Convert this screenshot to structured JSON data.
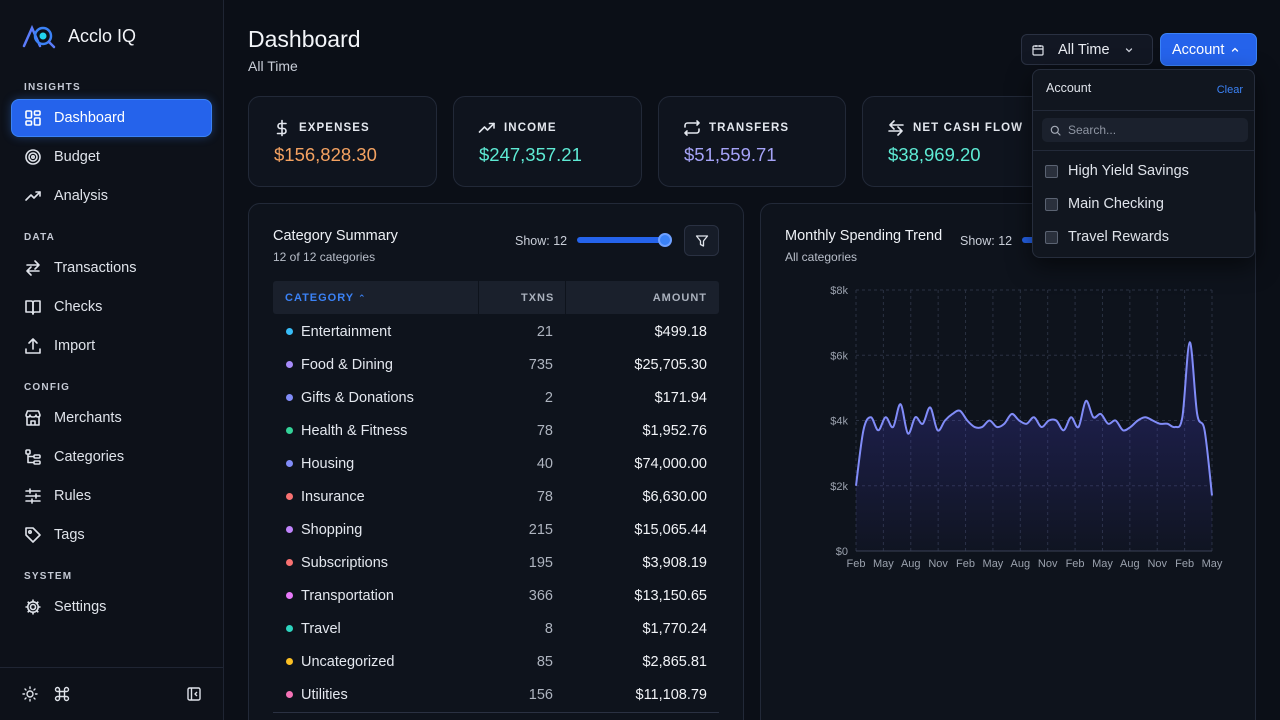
{
  "app": {
    "name": "Acclo IQ"
  },
  "sidebar": {
    "sections": [
      "INSIGHTS",
      "DATA",
      "CONFIG",
      "SYSTEM"
    ],
    "items": [
      {
        "label": "Dashboard",
        "icon": "dashboard-grid-icon",
        "active": true
      },
      {
        "label": "Budget",
        "icon": "target-icon"
      },
      {
        "label": "Analysis",
        "icon": "trend-icon"
      },
      {
        "label": "Transactions",
        "icon": "arrows-swap-icon"
      },
      {
        "label": "Checks",
        "icon": "book-icon"
      },
      {
        "label": "Import",
        "icon": "upload-icon"
      },
      {
        "label": "Merchants",
        "icon": "store-icon"
      },
      {
        "label": "Categories",
        "icon": "tree-icon"
      },
      {
        "label": "Rules",
        "icon": "sliders-icon"
      },
      {
        "label": "Tags",
        "icon": "tag-icon"
      },
      {
        "label": "Settings",
        "icon": "gear-icon"
      }
    ]
  },
  "header": {
    "title": "Dashboard",
    "subtitle": "All Time",
    "time_filter": "All Time",
    "account_button": "Account"
  },
  "stats": [
    {
      "label": "EXPENSES",
      "value": "$156,828.30",
      "color": "#f4a261",
      "icon": "dollar-icon"
    },
    {
      "label": "INCOME",
      "value": "$247,357.21",
      "color": "#5eead4",
      "icon": "trend-up-icon"
    },
    {
      "label": "TRANSFERS",
      "value": "$51,559.71",
      "color": "#a5a3f7",
      "icon": "transfer-icon"
    },
    {
      "label": "NET CASH FLOW",
      "value": "$38,969.20",
      "color": "#5eead4",
      "icon": "swap-icon"
    }
  ],
  "category_summary": {
    "title": "Category Summary",
    "subtitle": "12 of 12 categories",
    "show_label": "Show: 12",
    "columns": [
      "CATEGORY",
      "TXNS",
      "AMOUNT"
    ],
    "rows": [
      {
        "name": "Entertainment",
        "txns": "21",
        "amount": "$499.18",
        "color": "#38bdf8"
      },
      {
        "name": "Food & Dining",
        "txns": "735",
        "amount": "$25,705.30",
        "color": "#a78bfa"
      },
      {
        "name": "Gifts & Donations",
        "txns": "2",
        "amount": "$171.94",
        "color": "#818cf8"
      },
      {
        "name": "Health & Fitness",
        "txns": "78",
        "amount": "$1,952.76",
        "color": "#34d399"
      },
      {
        "name": "Housing",
        "txns": "40",
        "amount": "$74,000.00",
        "color": "#818cf8"
      },
      {
        "name": "Insurance",
        "txns": "78",
        "amount": "$6,630.00",
        "color": "#f87171"
      },
      {
        "name": "Shopping",
        "txns": "215",
        "amount": "$15,065.44",
        "color": "#c084fc"
      },
      {
        "name": "Subscriptions",
        "txns": "195",
        "amount": "$3,908.19",
        "color": "#f87171"
      },
      {
        "name": "Transportation",
        "txns": "366",
        "amount": "$13,150.65",
        "color": "#e879f9"
      },
      {
        "name": "Travel",
        "txns": "8",
        "amount": "$1,770.24",
        "color": "#2dd4bf"
      },
      {
        "name": "Uncategorized",
        "txns": "85",
        "amount": "$2,865.81",
        "color": "#fbbf24"
      },
      {
        "name": "Utilities",
        "txns": "156",
        "amount": "$11,108.79",
        "color": "#f472b6"
      }
    ]
  },
  "trend": {
    "title": "Monthly Spending Trend",
    "subtitle": "All categories",
    "show_label": "Show: 12"
  },
  "chart_data": {
    "type": "area",
    "title": "Monthly Spending Trend",
    "subtitle": "All categories",
    "x_tick_labels": [
      "Feb",
      "May",
      "Aug",
      "Nov",
      "Feb",
      "May",
      "Aug",
      "Nov",
      "Feb",
      "May",
      "Aug",
      "Nov",
      "Feb",
      "May"
    ],
    "y_tick_labels": [
      "$0",
      "$2k",
      "$4k",
      "$6k",
      "$8k"
    ],
    "ylim": [
      0,
      8000
    ],
    "grid": true,
    "line_color": "#818cf8",
    "values": [
      2000,
      3700,
      4100,
      3700,
      4100,
      3800,
      4500,
      3600,
      4100,
      3900,
      4400,
      3700,
      4000,
      4200,
      4300,
      4000,
      3800,
      3800,
      4000,
      3800,
      3900,
      4200,
      4000,
      3900,
      4100,
      3800,
      4000,
      4000,
      3700,
      4100,
      3800,
      4600,
      4100,
      4200,
      3900,
      4000,
      3700,
      3800,
      4000,
      4100,
      4000,
      3900,
      3900,
      3800,
      4100,
      6400,
      4200,
      3700,
      1700
    ]
  },
  "account_dropdown": {
    "title": "Account",
    "clear": "Clear",
    "search_placeholder": "Search...",
    "options": [
      "High Yield Savings",
      "Main Checking",
      "Travel Rewards"
    ]
  }
}
